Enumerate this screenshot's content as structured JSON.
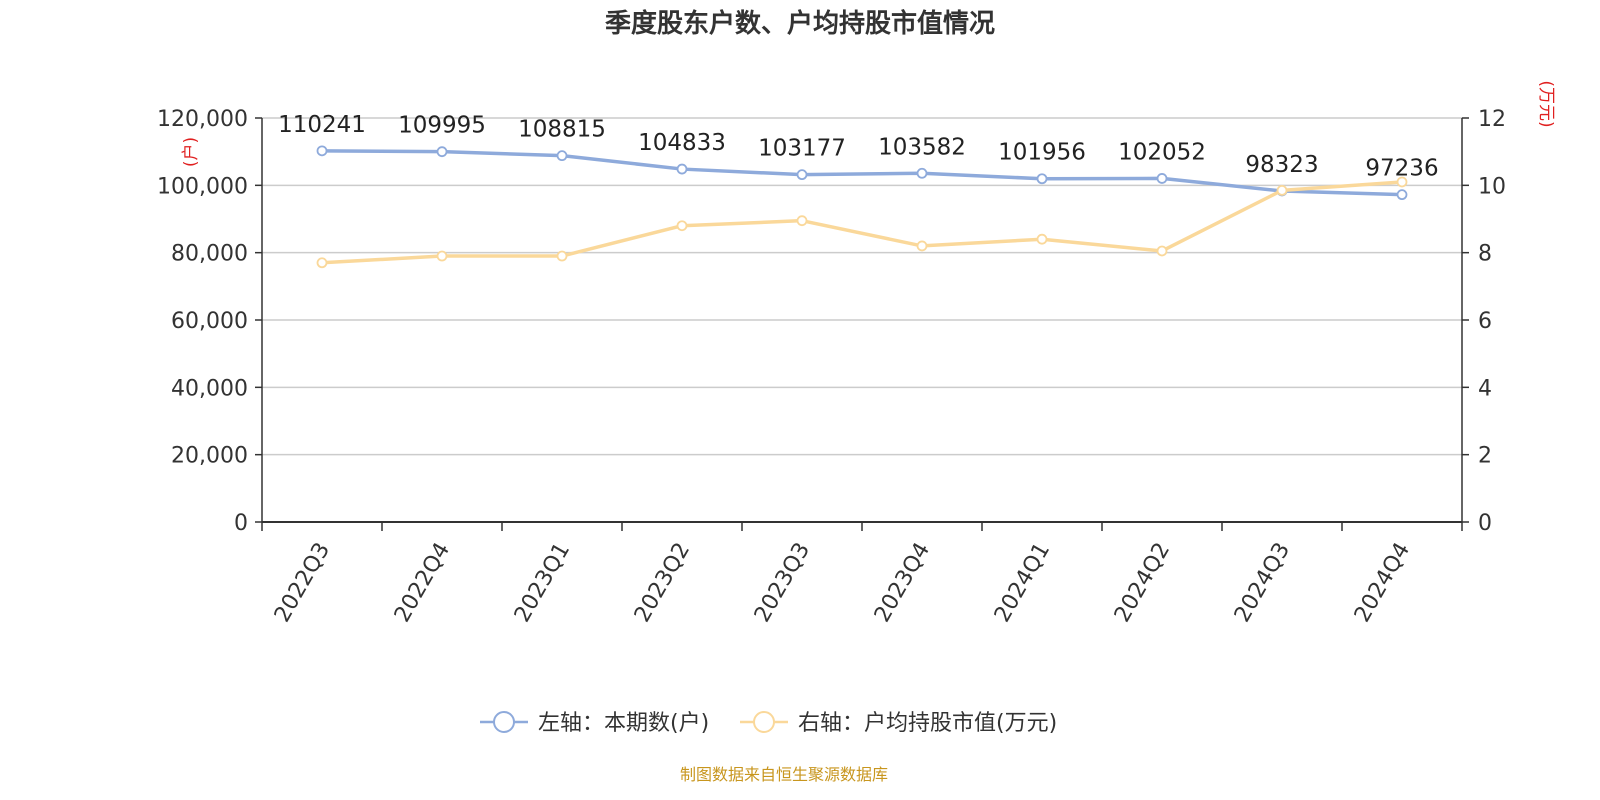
{
  "chart_data": {
    "type": "line",
    "title": "季度股东户数、户均持股市值情况",
    "categories": [
      "2022Q3",
      "2022Q4",
      "2023Q1",
      "2023Q2",
      "2023Q3",
      "2023Q4",
      "2024Q1",
      "2024Q2",
      "2024Q3",
      "2024Q4"
    ],
    "series": [
      {
        "name": "左轴：本期数(户)",
        "axis": "left",
        "color": "#8eaadb",
        "values": [
          110241,
          109995,
          108815,
          104833,
          103177,
          103582,
          101956,
          102052,
          98323,
          97236
        ],
        "data_labels": [
          "110241",
          "109995",
          "108815",
          "104833",
          "103177",
          "103582",
          "101956",
          "102052",
          "98323",
          "97236"
        ]
      },
      {
        "name": "右轴：户均持股市值(万元)",
        "axis": "right",
        "color": "#fad89a",
        "values": [
          7.7,
          7.9,
          7.9,
          8.8,
          8.95,
          8.2,
          8.4,
          8.05,
          9.85,
          10.1
        ]
      }
    ],
    "left_axis": {
      "unit": "(户)",
      "ylim": [
        0,
        120000
      ],
      "ticks": [
        0,
        20000,
        40000,
        60000,
        80000,
        100000,
        120000
      ],
      "tick_labels": [
        "0",
        "20,000",
        "40,000",
        "60,000",
        "80,000",
        "100,000",
        "120,000"
      ]
    },
    "right_axis": {
      "unit": "(万元)",
      "ylim": [
        0,
        12
      ],
      "ticks": [
        0,
        2,
        4,
        6,
        8,
        10,
        12
      ],
      "tick_labels": [
        "0",
        "2",
        "4",
        "6",
        "8",
        "10",
        "12"
      ]
    },
    "grid": true,
    "legend_position": "bottom-center"
  },
  "source_text": "制图数据来自恒生聚源数据库"
}
